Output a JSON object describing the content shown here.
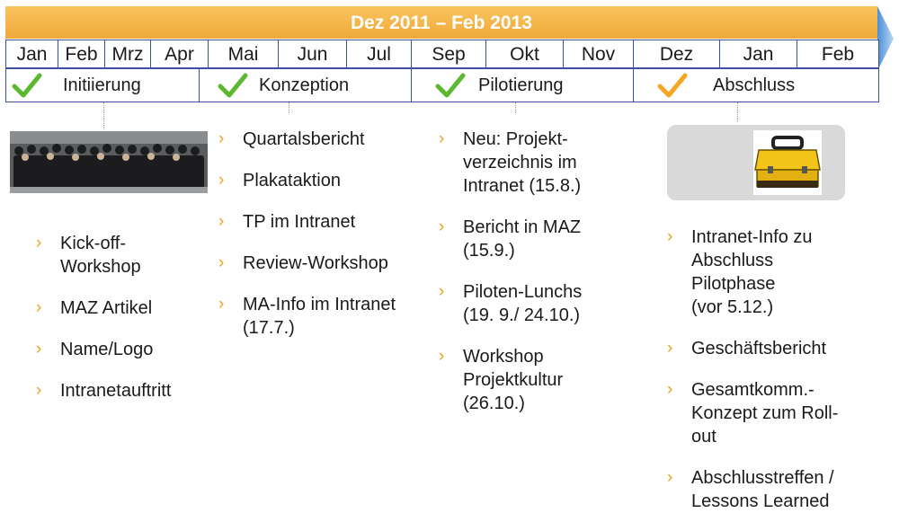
{
  "title": "Dez 2011 – Feb 2013",
  "months": [
    "Jan",
    "Feb",
    "Mrz",
    "Apr",
    "Mai",
    "Jun",
    "Jul",
    "Sep",
    "Okt",
    "Nov",
    "Dez",
    "Jan",
    "Feb"
  ],
  "phases": [
    {
      "label": "Initiierung",
      "status": "done"
    },
    {
      "label": "Konzeption",
      "status": "done"
    },
    {
      "label": "Pilotierung",
      "status": "done"
    },
    {
      "label": "Abschluss",
      "status": "in-progress"
    }
  ],
  "columns": {
    "initiierung": [
      "Kick-off-\nWorkshop",
      "MAZ Artikel",
      "Name/Logo",
      "Intranetauftritt"
    ],
    "konzeption": [
      "Quartalsbericht",
      "Plakataktion",
      "TP im Intranet",
      "Review-Workshop",
      "MA-Info im Intranet\n(17.7.)"
    ],
    "pilotierung": [
      "Neu: Projekt-\nverzeichnis im\nIntranet (15.8.)",
      "Bericht in MAZ\n(15.9.)",
      "Piloten-Lunchs\n(19. 9./ 24.10.)",
      "Workshop\nProjektkultur\n(26.10.)"
    ],
    "abschluss": [
      "Intranet-Info zu\nAbschluss\nPilotphase\n(vor 5.12.)",
      "Geschäftsbericht",
      "Gesamtkomm.-\nKonzept zum Roll-\nout",
      "Abschlusstreffen /\nLessons Learned"
    ]
  },
  "icons": {
    "check": "check-icon",
    "bullet": "chevron-right-icon"
  },
  "colors": {
    "accent": "#f0a93a",
    "check_green": "#5cb82e",
    "check_orange": "#f5a623",
    "grid": "#3a4fa0",
    "bullet": "#f0a020"
  }
}
